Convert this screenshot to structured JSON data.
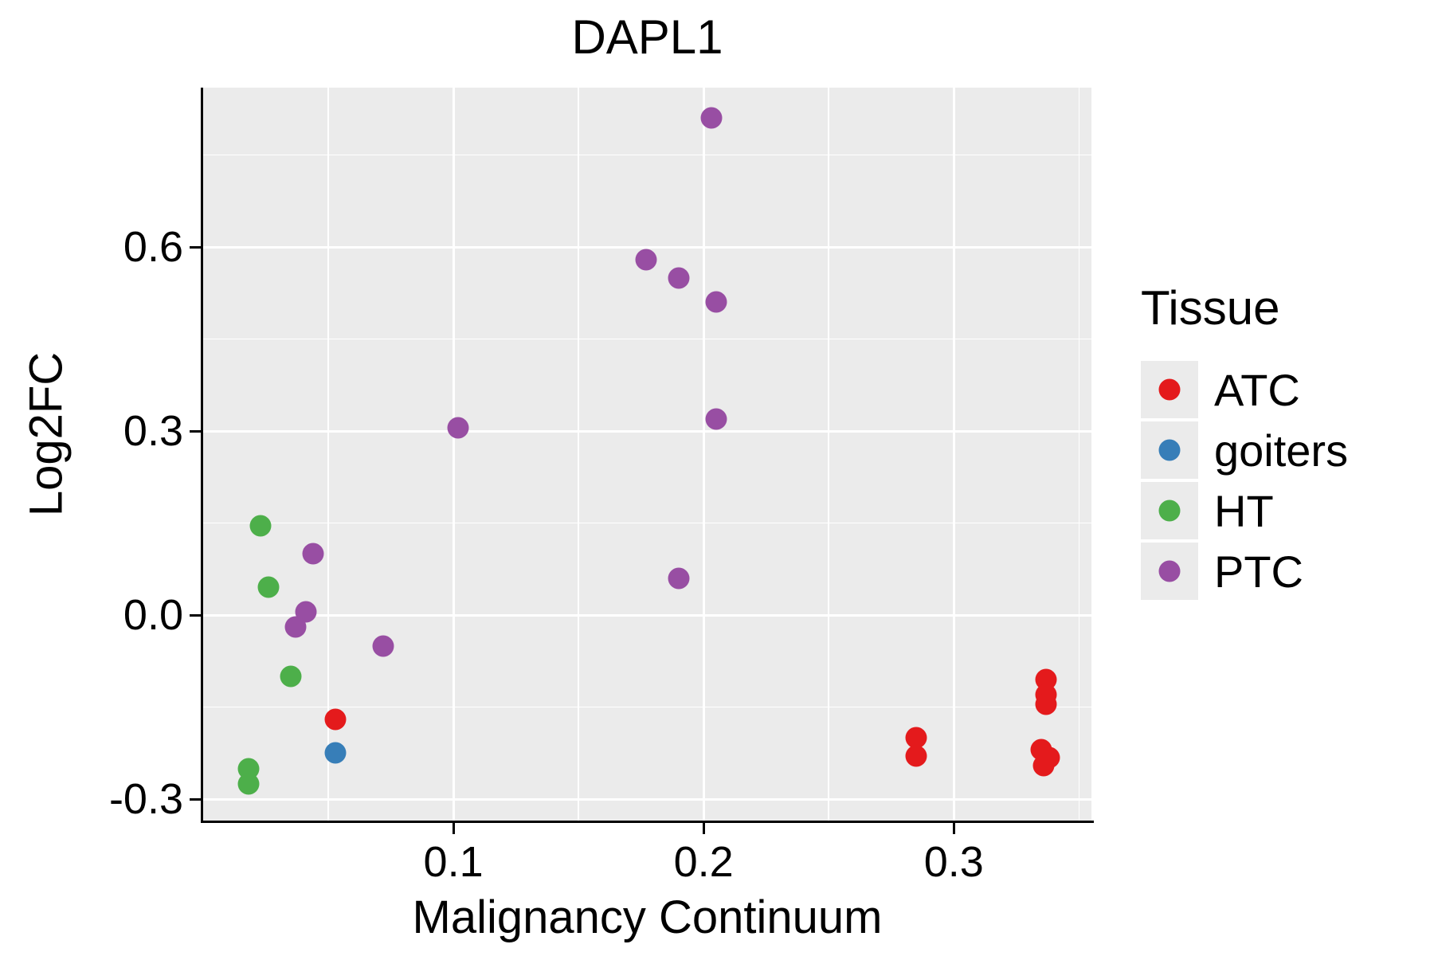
{
  "title": "DAPL1",
  "axes": {
    "x_label": "Malignancy Continuum",
    "y_label": "Log2FC"
  },
  "legend": {
    "title": "Tissue",
    "entries": [
      {
        "label": "ATC",
        "color": "#e41a1c"
      },
      {
        "label": "goiters",
        "color": "#377eb8"
      },
      {
        "label": "HT",
        "color": "#4daf4a"
      },
      {
        "label": "PTC",
        "color": "#984ea3"
      }
    ]
  },
  "chart_data": {
    "type": "scatter",
    "title": "DAPL1",
    "xlabel": "Malignancy Continuum",
    "ylabel": "Log2FC",
    "xlim": [
      0.0,
      0.355
    ],
    "ylim": [
      -0.335,
      0.86
    ],
    "x_ticks": [
      0.1,
      0.2,
      0.3
    ],
    "y_ticks": [
      -0.3,
      0.0,
      0.3,
      0.6
    ],
    "x_minor": [
      0.05,
      0.15,
      0.25,
      0.35
    ],
    "y_minor": [
      -0.15,
      0.15,
      0.45,
      0.75
    ],
    "grid": true,
    "legend_position": "right",
    "legend_title": "Tissue",
    "panel_background": "#EBEBEB",
    "grid_color": "#FFFFFF",
    "series": [
      {
        "name": "ATC",
        "color": "#e41a1c",
        "points": [
          [
            0.053,
            -0.17
          ],
          [
            0.285,
            -0.2
          ],
          [
            0.285,
            -0.23
          ],
          [
            0.337,
            -0.105
          ],
          [
            0.337,
            -0.13
          ],
          [
            0.337,
            -0.145
          ],
          [
            0.335,
            -0.22
          ],
          [
            0.338,
            -0.232
          ],
          [
            0.336,
            -0.245
          ]
        ]
      },
      {
        "name": "goiters",
        "color": "#377eb8",
        "points": [
          [
            0.053,
            -0.225
          ]
        ]
      },
      {
        "name": "HT",
        "color": "#4daf4a",
        "points": [
          [
            0.023,
            0.145
          ],
          [
            0.026,
            0.045
          ],
          [
            0.035,
            -0.1
          ],
          [
            0.018,
            -0.25
          ],
          [
            0.018,
            -0.275
          ]
        ]
      },
      {
        "name": "PTC",
        "color": "#984ea3",
        "points": [
          [
            0.203,
            0.81
          ],
          [
            0.177,
            0.58
          ],
          [
            0.19,
            0.55
          ],
          [
            0.205,
            0.51
          ],
          [
            0.205,
            0.32
          ],
          [
            0.102,
            0.305
          ],
          [
            0.19,
            0.06
          ],
          [
            0.044,
            0.1
          ],
          [
            0.041,
            0.005
          ],
          [
            0.037,
            -0.02
          ],
          [
            0.072,
            -0.05
          ]
        ]
      }
    ]
  }
}
